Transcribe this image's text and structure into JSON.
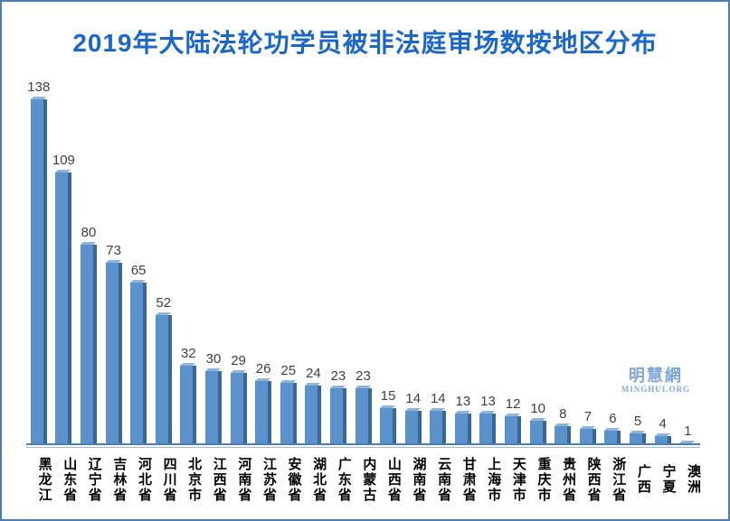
{
  "title": "2019年大陆法轮功学员被非法庭审场数按地区分布",
  "watermark": {
    "line1": "明慧網",
    "line2": "MINGHUI.ORG"
  },
  "colors": {
    "frame_border": "#4a7cb5",
    "title_color": "#1b67c8",
    "bar_face": "#5b92cb",
    "bar_side": "#38689b",
    "bar_top": "#8fb3da",
    "axis_line": "#4f7cb2",
    "axis_shadow": "#9fb9dc",
    "value_label": "#3f3f3f",
    "category_label": "#000000",
    "watermark": "#7fa7d6"
  },
  "chart_data": {
    "type": "bar",
    "style": "3d-column",
    "title": "2019年大陆法轮功学员被非法庭审场数按地区分布",
    "categories": [
      "黑龙江",
      "山东省",
      "辽宁省",
      "吉林省",
      "河北省",
      "四川省",
      "北京市",
      "江西省",
      "河南省",
      "江苏省",
      "安徽省",
      "湖北省",
      "广东省",
      "内蒙古",
      "山西省",
      "湖南省",
      "云南省",
      "甘肃省",
      "上海市",
      "天津市",
      "重庆市",
      "贵州省",
      "陕西省",
      "浙江省",
      "广西",
      "宁夏",
      "澳洲"
    ],
    "values": [
      138,
      109,
      80,
      73,
      65,
      52,
      32,
      30,
      29,
      26,
      25,
      24,
      23,
      23,
      15,
      14,
      14,
      13,
      13,
      12,
      10,
      8,
      7,
      6,
      5,
      4,
      1
    ],
    "xlabel": "",
    "ylabel": "",
    "ylim": [
      0,
      140
    ],
    "grid": false,
    "legend": false,
    "data_labels": true,
    "category_label_orientation": "vertical"
  }
}
